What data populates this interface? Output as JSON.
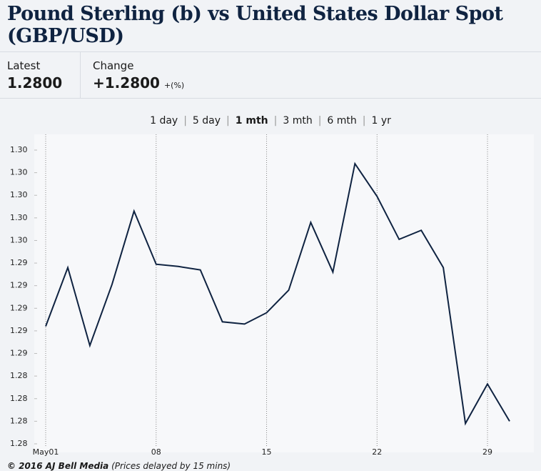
{
  "header": {
    "title": "Pound Sterling (b) vs United States Dollar Spot (GBP/USD)"
  },
  "quote": {
    "latest_label": "Latest",
    "latest_value": "1.2800",
    "change_label": "Change",
    "change_value": "+1.2800",
    "change_pct": "+(%)"
  },
  "tabs": {
    "items": [
      "1 day",
      "5 day",
      "1 mth",
      "3 mth",
      "6 mth",
      "1 yr"
    ],
    "active": 2
  },
  "chart_data": {
    "type": "line",
    "categories": [
      "May01",
      null,
      null,
      null,
      null,
      "08",
      null,
      null,
      null,
      null,
      "15",
      null,
      null,
      null,
      null,
      "22",
      null,
      null,
      null,
      null,
      "29",
      null
    ],
    "series": [
      {
        "color": "#0f2341",
        "values": [
          1.2884,
          1.2936,
          1.2867,
          1.2921,
          1.2986,
          1.2939,
          1.2937,
          1.2934,
          1.2888,
          1.2886,
          1.2896,
          1.2916,
          1.2976,
          1.2932,
          1.3028,
          1.2999,
          1.2961,
          1.2969,
          1.2936,
          1.2798,
          1.2833,
          1.28
        ]
      }
    ],
    "ylim": [
      1.278,
      1.304
    ],
    "yticks": [
      {
        "value": 1.278,
        "label": "1.28"
      },
      {
        "value": 1.28,
        "label": "1.28"
      },
      {
        "value": 1.282,
        "label": "1.28"
      },
      {
        "value": 1.284,
        "label": "1.28"
      },
      {
        "value": 1.286,
        "label": "1.29"
      },
      {
        "value": 1.288,
        "label": "1.29"
      },
      {
        "value": 1.29,
        "label": "1.29"
      },
      {
        "value": 1.292,
        "label": "1.29"
      },
      {
        "value": 1.294,
        "label": "1.29"
      },
      {
        "value": 1.296,
        "label": "1.30"
      },
      {
        "value": 1.298,
        "label": "1.30"
      },
      {
        "value": 1.3,
        "label": "1.30"
      },
      {
        "value": 1.302,
        "label": "1.30"
      },
      {
        "value": 1.304,
        "label": "1.30"
      }
    ],
    "grid": true
  },
  "footer": {
    "source": "© 2016 AJ Bell Media",
    "note": "(Prices delayed by 15 mins)"
  }
}
